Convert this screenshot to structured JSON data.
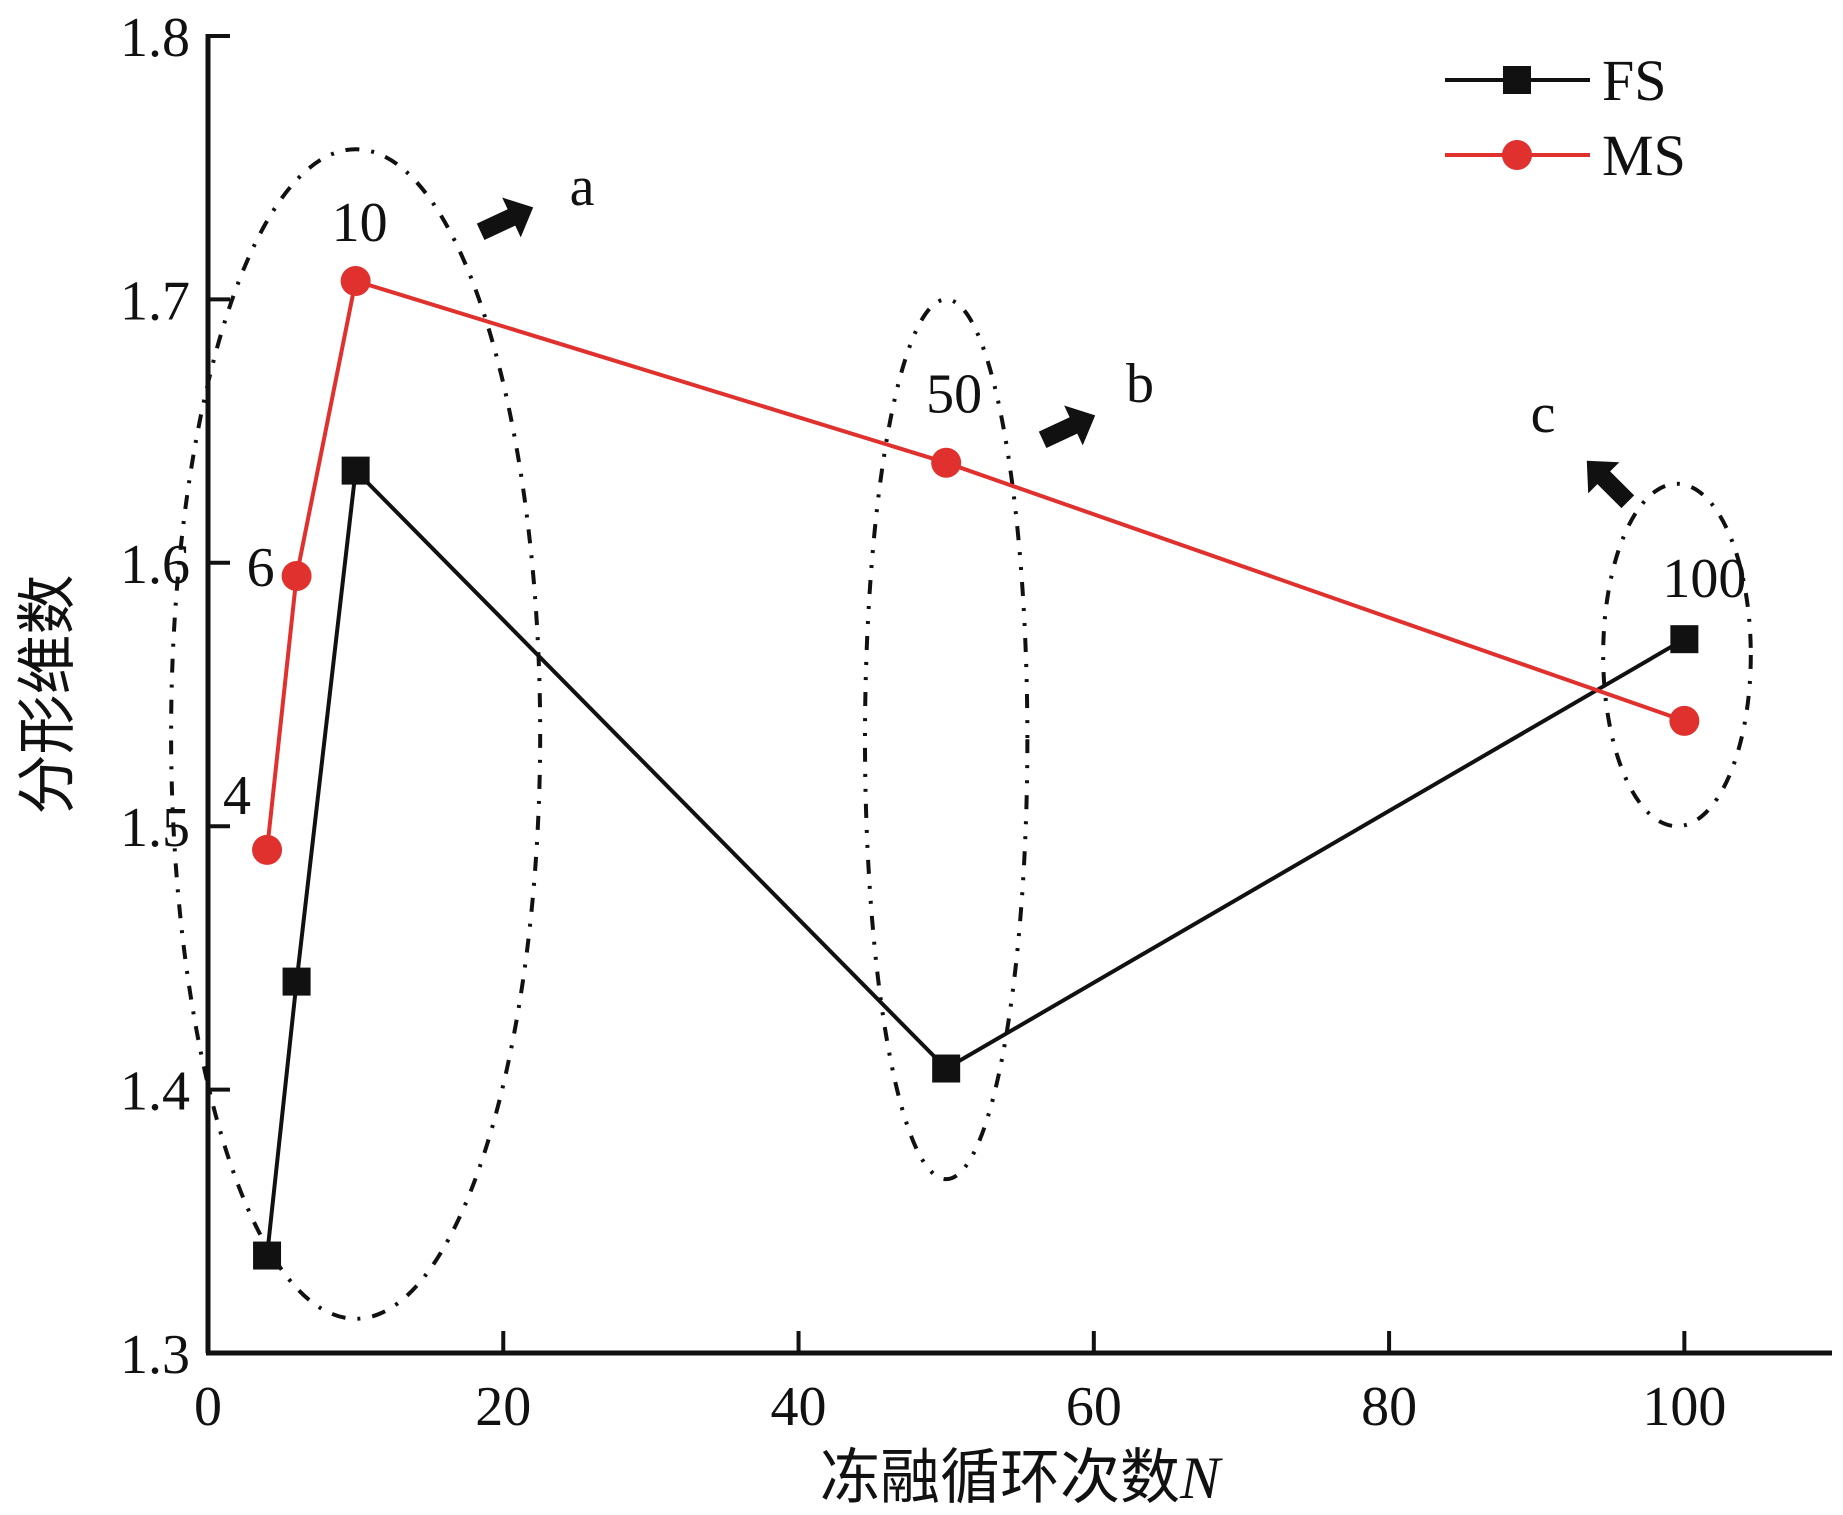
{
  "chart_data": {
    "type": "line",
    "title": "",
    "xlabel": "冻融循环次数",
    "xlabel_var": "N",
    "ylabel": "分形维数",
    "xlim": [
      0,
      110
    ],
    "ylim": [
      1.3,
      1.8
    ],
    "xticks": [
      0,
      20,
      40,
      60,
      80,
      100
    ],
    "xtick_labels": [
      "0",
      "20",
      "40",
      "60",
      "80",
      "100"
    ],
    "yticks": [
      1.3,
      1.4,
      1.5,
      1.6,
      1.7,
      1.8
    ],
    "ytick_labels": [
      "1.3",
      "1.4",
      "1.5",
      "1.6",
      "1.7",
      "1.8"
    ],
    "grid": false,
    "legend_position": "top-right",
    "series": [
      {
        "name": "FS",
        "color": "#111111",
        "marker": "square",
        "x": [
          4,
          6,
          10,
          50,
          100
        ],
        "y": [
          1.337,
          1.441,
          1.635,
          1.408,
          1.571
        ]
      },
      {
        "name": "MS",
        "color": "#e0312e",
        "marker": "circle",
        "x": [
          4,
          6,
          10,
          50,
          100
        ],
        "y": [
          1.491,
          1.595,
          1.707,
          1.638,
          1.54
        ]
      }
    ],
    "point_labels": [
      "4",
      "6",
      "10",
      "50",
      "100"
    ],
    "group_labels": [
      "a",
      "b",
      "c"
    ]
  }
}
